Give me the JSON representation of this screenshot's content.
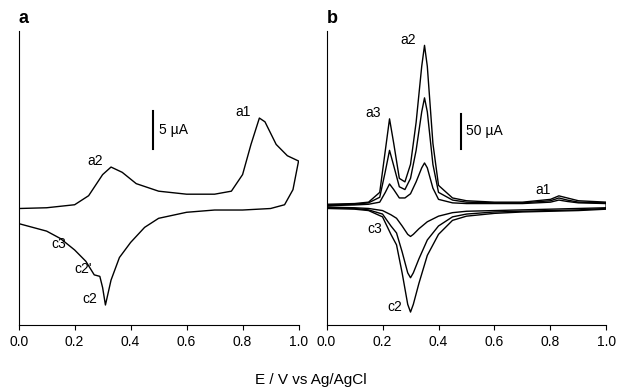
{
  "xlabel": "E / V vs Ag/AgCl",
  "chart_data": [
    {
      "type": "line",
      "title": "a",
      "tick_labels": "x",
      "grid": false,
      "xlim": [
        0.0,
        1.0
      ],
      "xticks": [
        0.0,
        0.2,
        0.4,
        0.6,
        0.8,
        1.0
      ],
      "ylim": [
        -15,
        24
      ],
      "scale_bar": {
        "value": 5,
        "label": "5 µA"
      },
      "series": [
        {
          "color": "#000000",
          "x": [
            0.0,
            0.1,
            0.2,
            0.25,
            0.3,
            0.33,
            0.37,
            0.42,
            0.5,
            0.6,
            0.7,
            0.76,
            0.8,
            0.83,
            0.86,
            0.88,
            0.92,
            0.96,
            1.0,
            0.98,
            0.95,
            0.9,
            0.8,
            0.7,
            0.6,
            0.5,
            0.45,
            0.4,
            0.36,
            0.33,
            0.31,
            0.3,
            0.29,
            0.27,
            0.24,
            0.2,
            0.15,
            0.1,
            0.0
          ],
          "values": [
            0.5,
            0.6,
            1,
            2.2,
            5,
            6,
            5.3,
            3.8,
            2.8,
            2.4,
            2.4,
            2.8,
            5,
            9,
            12.5,
            12,
            9,
            7.5,
            6.8,
            3,
            1,
            0.5,
            0.3,
            0.3,
            0,
            -0.8,
            -2,
            -4,
            -6,
            -9,
            -12.3,
            -10,
            -8.5,
            -8.3,
            -6.5,
            -5,
            -3.5,
            -2.5,
            -1.5
          ]
        }
      ],
      "annotations": [
        {
          "text": "a1",
          "x": 0.86,
          "y": 12.5
        },
        {
          "text": "a2",
          "x": 0.33,
          "y": 6
        },
        {
          "text": "c3",
          "x": 0.2,
          "y": -5
        },
        {
          "text": "c2'",
          "x": 0.29,
          "y": -8.3
        },
        {
          "text": "c2",
          "x": 0.31,
          "y": -12.3
        }
      ]
    },
    {
      "type": "line",
      "title": "b",
      "tick_labels": "x",
      "grid": false,
      "xlim": [
        0.0,
        1.0
      ],
      "xticks": [
        0.0,
        0.2,
        0.4,
        0.6,
        0.8,
        1.0
      ],
      "ylim": [
        -170,
        250
      ],
      "scale_bar": {
        "value": 50,
        "label": "50 µA"
      },
      "series": [
        {
          "color": "#000000",
          "x": [
            0.0,
            0.1,
            0.15,
            0.19,
            0.21,
            0.225,
            0.24,
            0.26,
            0.28,
            0.3,
            0.32,
            0.34,
            0.35,
            0.36,
            0.38,
            0.4,
            0.45,
            0.5,
            0.6,
            0.7,
            0.8,
            0.83,
            0.86,
            0.9,
            1.0,
            1.0,
            0.9,
            0.8,
            0.7,
            0.6,
            0.5,
            0.45,
            0.4,
            0.36,
            0.33,
            0.31,
            0.3,
            0.29,
            0.27,
            0.25,
            0.23,
            0.2,
            0.15,
            0.1,
            0.0
          ],
          "values": [
            1,
            2,
            3,
            6,
            20,
            32,
            24,
            12,
            12,
            18,
            35,
            55,
            62,
            55,
            26,
            10,
            5,
            4,
            4,
            4,
            6,
            9,
            7,
            5,
            4,
            -2,
            -3,
            -4,
            -5,
            -6,
            -7,
            -9,
            -14,
            -22,
            -32,
            -40,
            -43,
            -40,
            -28,
            -17,
            -12,
            -6,
            -3,
            -2,
            -1
          ]
        },
        {
          "color": "#000000",
          "x": [
            0.0,
            0.1,
            0.15,
            0.19,
            0.21,
            0.225,
            0.24,
            0.26,
            0.28,
            0.3,
            0.32,
            0.34,
            0.35,
            0.36,
            0.38,
            0.4,
            0.45,
            0.5,
            0.6,
            0.7,
            0.8,
            0.83,
            0.86,
            0.9,
            1.0,
            1.0,
            0.9,
            0.8,
            0.7,
            0.6,
            0.5,
            0.45,
            0.4,
            0.36,
            0.33,
            0.31,
            0.3,
            0.29,
            0.27,
            0.25,
            0.23,
            0.2,
            0.15,
            0.1,
            0.0
          ],
          "values": [
            2,
            3,
            5,
            13,
            50,
            80,
            58,
            28,
            24,
            40,
            80,
            135,
            155,
            135,
            60,
            20,
            9,
            6,
            5,
            5,
            8,
            12,
            9,
            6,
            5,
            -3,
            -5,
            -6,
            -7,
            -8,
            -11,
            -15,
            -28,
            -48,
            -75,
            -95,
            -102,
            -95,
            -65,
            -38,
            -28,
            -11,
            -5,
            -3,
            -2
          ]
        },
        {
          "color": "#000000",
          "x": [
            0.0,
            0.1,
            0.15,
            0.19,
            0.21,
            0.225,
            0.24,
            0.26,
            0.28,
            0.3,
            0.32,
            0.34,
            0.35,
            0.36,
            0.38,
            0.4,
            0.45,
            0.5,
            0.6,
            0.7,
            0.8,
            0.83,
            0.86,
            0.9,
            1.0,
            1.0,
            0.9,
            0.8,
            0.7,
            0.6,
            0.5,
            0.45,
            0.4,
            0.36,
            0.33,
            0.31,
            0.3,
            0.29,
            0.27,
            0.25,
            0.23,
            0.2,
            0.15,
            0.1,
            0.0
          ],
          "values": [
            3,
            4,
            6,
            20,
            80,
            125,
            90,
            40,
            35,
            60,
            120,
            200,
            230,
            200,
            90,
            30,
            12,
            8,
            6,
            6,
            10,
            15,
            12,
            8,
            6,
            -4,
            -6,
            -7,
            -8,
            -10,
            -14,
            -20,
            -40,
            -70,
            -110,
            -140,
            -151,
            -140,
            -95,
            -55,
            -40,
            -15,
            -6,
            -4,
            -3
          ]
        }
      ],
      "annotations": [
        {
          "text": "a2",
          "x": 0.35,
          "y": 230
        },
        {
          "text": "a3",
          "x": 0.225,
          "y": 125
        },
        {
          "text": "a1",
          "x": 0.83,
          "y": 15
        },
        {
          "text": "c3",
          "x": 0.23,
          "y": -40
        },
        {
          "text": "c2",
          "x": 0.3,
          "y": -151
        }
      ]
    }
  ]
}
